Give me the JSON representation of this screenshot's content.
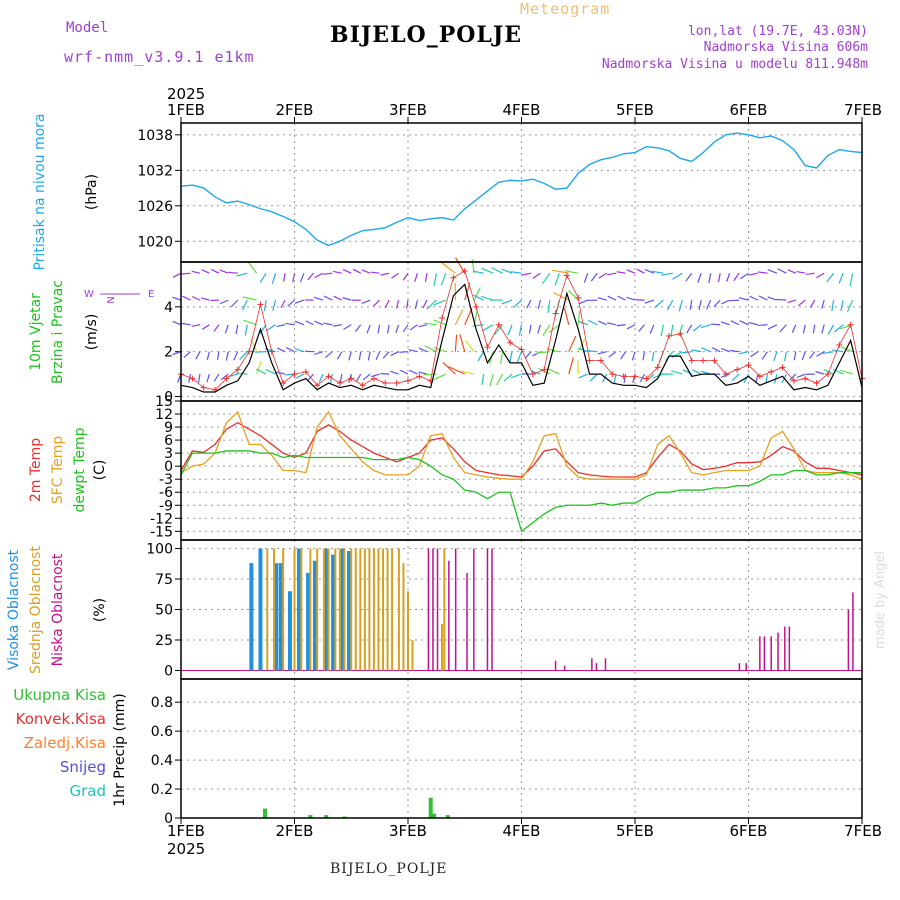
{
  "header": {
    "title": "BIJELO_POLJE",
    "subtitle": "Meteogram",
    "model_label": "Model",
    "model_version": "wrf-nmm_v3.9.1 e1km",
    "lonlat": "lon,lat (19.7E, 43.03N)",
    "elevation": "Nadmorska Visina 606m",
    "model_elevation": "Nadmorska Visina u modelu 811.948m",
    "footer": "BIJELO_POLJE",
    "credit": "made by Angel"
  },
  "time_axis": {
    "year": "2025",
    "ticks": [
      "1FEB",
      "2FEB",
      "3FEB",
      "4FEB",
      "5FEB",
      "6FEB",
      "7FEB"
    ]
  },
  "colors": {
    "pressure": "#1fa8e8",
    "temp2m": "#e83030",
    "sfc": "#e8a020",
    "dewpt": "#20c020",
    "high_cloud": "#2090e0",
    "mid_cloud": "#d8a020",
    "low_cloud": "#c0108c",
    "precip": "#30c030",
    "wind_gust": "#e83030",
    "wind_speed": "#000000"
  },
  "chart_data": [
    {
      "type": "line",
      "name": "pressure",
      "ylabel": "Pritisak na nivou mora",
      "unit": "(hPa)",
      "yticks": [
        "1020",
        "1026",
        "1032",
        "1038"
      ],
      "ylim": [
        1016.5,
        1040
      ],
      "x": [
        0,
        0.1,
        0.2,
        0.3,
        0.4,
        0.5,
        0.6,
        0.7,
        0.8,
        0.9,
        1.0,
        1.1,
        1.2,
        1.3,
        1.4,
        1.5,
        1.6,
        1.7,
        1.8,
        1.9,
        2.0,
        2.1,
        2.2,
        2.3,
        2.4,
        2.5,
        2.6,
        2.7,
        2.8,
        2.9,
        3.0,
        3.1,
        3.2,
        3.3,
        3.4,
        3.5,
        3.6,
        3.7,
        3.8,
        3.9,
        4.0,
        4.1,
        4.2,
        4.3,
        4.4,
        4.5,
        4.6,
        4.7,
        4.8,
        4.9,
        5.0,
        5.1,
        5.2,
        5.3,
        5.4,
        5.5,
        5.6,
        5.7,
        5.8,
        5.9,
        6.0
      ],
      "values": [
        1029.3,
        1029.5,
        1029.0,
        1027.5,
        1026.5,
        1026.8,
        1026.2,
        1025.5,
        1025.0,
        1024.2,
        1023.3,
        1022.0,
        1020.2,
        1019.3,
        1020.0,
        1021.0,
        1021.8,
        1022.0,
        1022.3,
        1023.2,
        1024.0,
        1023.5,
        1023.8,
        1024.0,
        1023.6,
        1025.5,
        1027.0,
        1028.5,
        1030.0,
        1030.3,
        1030.2,
        1030.5,
        1029.8,
        1028.8,
        1029.0,
        1031.5,
        1033.0,
        1033.8,
        1034.2,
        1034.8,
        1035.0,
        1036.0,
        1035.8,
        1035.3,
        1034.0,
        1033.5,
        1035.0,
        1036.8,
        1038.0,
        1038.3,
        1038.0,
        1037.5,
        1037.8,
        1037.0,
        1035.5,
        1032.8,
        1032.4,
        1034.5,
        1035.5,
        1035.2,
        1035.0
      ]
    },
    {
      "type": "line",
      "name": "wind",
      "ylabel": "10m Vjetar",
      "ylabel2": "Brzina i Pravac",
      "unit": "(m/s)",
      "yticks": [
        "0",
        "2",
        "4"
      ],
      "compass": "W <-- N --> E",
      "compass_labels": [
        "W",
        "N",
        "E"
      ],
      "ylim": [
        -0.2,
        6.0
      ],
      "x": [
        0,
        0.1,
        0.2,
        0.3,
        0.4,
        0.5,
        0.6,
        0.7,
        0.8,
        0.9,
        1.0,
        1.1,
        1.2,
        1.3,
        1.4,
        1.5,
        1.6,
        1.7,
        1.8,
        1.9,
        2.0,
        2.1,
        2.2,
        2.3,
        2.4,
        2.5,
        2.6,
        2.7,
        2.8,
        2.9,
        3.0,
        3.1,
        3.2,
        3.3,
        3.4,
        3.5,
        3.6,
        3.7,
        3.8,
        3.9,
        4.0,
        4.1,
        4.2,
        4.3,
        4.4,
        4.5,
        4.6,
        4.7,
        4.8,
        4.9,
        5.0,
        5.1,
        5.2,
        5.3,
        5.4,
        5.5,
        5.6,
        5.7,
        5.8,
        5.9,
        6.0
      ],
      "speed": [
        0.5,
        0.4,
        0.2,
        0.2,
        0.5,
        0.7,
        1.5,
        3.0,
        1.5,
        0.3,
        0.6,
        0.8,
        0.3,
        0.6,
        0.4,
        0.5,
        0.3,
        0.5,
        0.4,
        0.3,
        0.3,
        0.5,
        0.4,
        2.5,
        4.5,
        5.0,
        3.0,
        1.5,
        2.3,
        1.5,
        1.5,
        0.5,
        0.6,
        2.5,
        4.6,
        3.0,
        1.0,
        1.0,
        0.6,
        0.5,
        0.5,
        0.4,
        0.8,
        1.8,
        1.8,
        0.9,
        1.0,
        1.0,
        0.5,
        0.6,
        0.9,
        0.5,
        0.7,
        0.9,
        0.3,
        0.4,
        0.3,
        0.5,
        1.5,
        2.5,
        0.4
      ],
      "gust": [
        1.0,
        0.8,
        0.4,
        0.3,
        0.8,
        1.2,
        2.0,
        4.1,
        2.0,
        0.6,
        1.0,
        1.1,
        0.5,
        0.9,
        0.6,
        0.8,
        0.5,
        0.8,
        0.6,
        0.6,
        0.7,
        0.9,
        0.7,
        3.5,
        5.3,
        5.6,
        4.0,
        2.2,
        3.2,
        2.4,
        2.1,
        1.0,
        1.2,
        3.7,
        5.4,
        4.4,
        1.6,
        1.6,
        1.0,
        0.9,
        0.9,
        0.8,
        1.3,
        2.7,
        2.8,
        1.6,
        1.6,
        1.6,
        1.0,
        1.2,
        1.4,
        0.9,
        1.1,
        1.3,
        0.7,
        0.8,
        0.6,
        1.0,
        2.3,
        3.2,
        0.8
      ]
    },
    {
      "type": "line",
      "name": "temperature",
      "ylabels": [
        "2m Temp",
        "SFC Temp",
        "dewpt Temp"
      ],
      "unit": "(C)",
      "yticks": [
        "15",
        "12",
        "9",
        "6",
        "3",
        "0",
        "-3",
        "-6",
        "-9",
        "-12",
        "-15"
      ],
      "ylim": [
        -17,
        15
      ],
      "x": [
        0,
        0.1,
        0.2,
        0.3,
        0.4,
        0.5,
        0.6,
        0.7,
        0.8,
        0.9,
        1.0,
        1.1,
        1.2,
        1.3,
        1.4,
        1.5,
        1.6,
        1.7,
        1.8,
        1.9,
        2.0,
        2.1,
        2.2,
        2.3,
        2.4,
        2.5,
        2.6,
        2.7,
        2.8,
        2.9,
        3.0,
        3.1,
        3.2,
        3.3,
        3.4,
        3.5,
        3.6,
        3.7,
        3.8,
        3.9,
        4.0,
        4.1,
        4.2,
        4.3,
        4.4,
        4.5,
        4.6,
        4.7,
        4.8,
        4.9,
        5.0,
        5.1,
        5.2,
        5.3,
        5.4,
        5.5,
        5.6,
        5.7,
        5.8,
        5.9,
        6.0
      ],
      "series": [
        {
          "name": "2m Temp",
          "values": [
            -1,
            3.5,
            3.2,
            5,
            8.5,
            10,
            8.5,
            7,
            5,
            3,
            2,
            3,
            8,
            9.5,
            8,
            6,
            4.5,
            3,
            2,
            1,
            2,
            3,
            6,
            6.5,
            4,
            1,
            -1,
            -1.5,
            -2,
            -2.2,
            -2.5,
            0,
            3.5,
            4,
            1,
            -1.5,
            -2,
            -2.3,
            -2.5,
            -2.5,
            -2.5,
            -1.5,
            2,
            5,
            3.5,
            0.5,
            -0.8,
            -0.5,
            0,
            0.8,
            0.8,
            1,
            2.5,
            4.5,
            3.5,
            1,
            -0.5,
            -0.5,
            -1,
            -1.5,
            -2
          ]
        },
        {
          "name": "SFC Temp",
          "values": [
            -1.5,
            0,
            0.5,
            3,
            10,
            12.5,
            5,
            5,
            2.5,
            -1,
            -1,
            -1.5,
            9,
            12.5,
            7,
            4,
            1,
            -1,
            -2,
            -2,
            -2,
            0,
            7,
            7.5,
            2,
            -1.5,
            -2,
            -2.5,
            -2.8,
            -3,
            -3,
            1,
            7,
            7.5,
            0,
            -2.5,
            -3,
            -3,
            -3,
            -3,
            -3,
            -2,
            5,
            7,
            3,
            -1.5,
            -2,
            -1.5,
            -1,
            -1,
            -1,
            0,
            6.5,
            8,
            4,
            -1,
            -1.5,
            -1.5,
            -1.5,
            -2,
            -3
          ]
        },
        {
          "name": "dewpt Temp",
          "values": [
            -2,
            3,
            3,
            3,
            3.5,
            3.5,
            3.5,
            3,
            3,
            2,
            2.5,
            2,
            2,
            2,
            2,
            2,
            2,
            1.5,
            1.5,
            1.5,
            2,
            1.5,
            0,
            -2,
            -3,
            -5.5,
            -6,
            -7.5,
            -6,
            -6,
            -15,
            -13,
            -11,
            -9.5,
            -9,
            -9,
            -9,
            -8.5,
            -9,
            -8.5,
            -8.5,
            -7,
            -6,
            -6,
            -5.5,
            -5.5,
            -5.5,
            -5,
            -5,
            -4.5,
            -4.5,
            -3.5,
            -2,
            -2,
            -1,
            -1,
            -2,
            -2,
            -1.5,
            -1.5,
            -1.5
          ]
        }
      ]
    },
    {
      "type": "bar",
      "name": "cloud_cover",
      "ylabels": [
        "Visoka Oblacnost",
        "Srednja Oblacnost",
        "Niska Oblacnost"
      ],
      "unit": "(%)",
      "yticks": [
        "0",
        "25",
        "50",
        "75",
        "100"
      ],
      "ylim": [
        -7,
        107
      ],
      "series": [
        {
          "name": "Visoka Oblacnost",
          "x": [
            0.62,
            0.7,
            0.84,
            0.88,
            0.96,
            1.04,
            1.12,
            1.18,
            1.28,
            1.34,
            1.42,
            1.48
          ],
          "values": [
            88,
            100,
            88,
            88,
            65,
            100,
            80,
            90,
            100,
            95,
            100,
            98
          ]
        },
        {
          "name": "Srednja Oblacnost",
          "x": [
            0.76,
            0.82,
            0.9,
            1.0,
            1.06,
            1.14,
            1.2,
            1.26,
            1.3,
            1.36,
            1.4,
            1.44,
            1.5,
            1.54,
            1.58,
            1.62,
            1.66,
            1.7,
            1.74,
            1.78,
            1.82,
            1.86,
            1.92,
            1.96,
            2.0,
            2.04,
            2.3,
            2.32
          ],
          "values": [
            100,
            100,
            100,
            100,
            100,
            100,
            100,
            100,
            100,
            100,
            100,
            100,
            100,
            100,
            100,
            100,
            100,
            100,
            100,
            100,
            100,
            100,
            100,
            88,
            65,
            25,
            38,
            100
          ]
        },
        {
          "name": "Niska Oblacnost",
          "x": [
            2.18,
            2.22,
            2.26,
            2.36,
            2.42,
            2.52,
            2.58,
            2.7,
            2.74,
            3.3,
            3.38,
            3.62,
            3.66,
            3.74,
            4.92,
            4.98,
            5.1,
            5.14,
            5.2,
            5.26,
            5.32,
            5.36,
            5.88,
            5.92
          ],
          "values": [
            100,
            100,
            100,
            90,
            100,
            80,
            100,
            100,
            100,
            8,
            4,
            10,
            6,
            10,
            6,
            6,
            28,
            28,
            28,
            31,
            36,
            36,
            50,
            64
          ]
        }
      ]
    },
    {
      "type": "bar",
      "name": "precipitation",
      "ylabel": "1hr Precip (mm)",
      "yticks": [
        "0",
        "0.2",
        "0.4",
        "0.6",
        "0.8"
      ],
      "ylim": [
        0,
        0.96
      ],
      "legend": [
        "Ukupna Kisa",
        "Konvek.Kisa",
        "Zaledj.Kisa",
        "Snijeg",
        "Grad"
      ],
      "legend_colors": [
        "#30c030",
        "#e83030",
        "#ff8030",
        "#5050e0",
        "#20c0c0"
      ],
      "x": [
        0.74,
        1.14,
        1.28,
        1.44,
        2.2,
        2.23,
        2.35
      ],
      "values": [
        0.065,
        0.02,
        0.02,
        0.01,
        0.14,
        0.03,
        0.02
      ]
    }
  ]
}
